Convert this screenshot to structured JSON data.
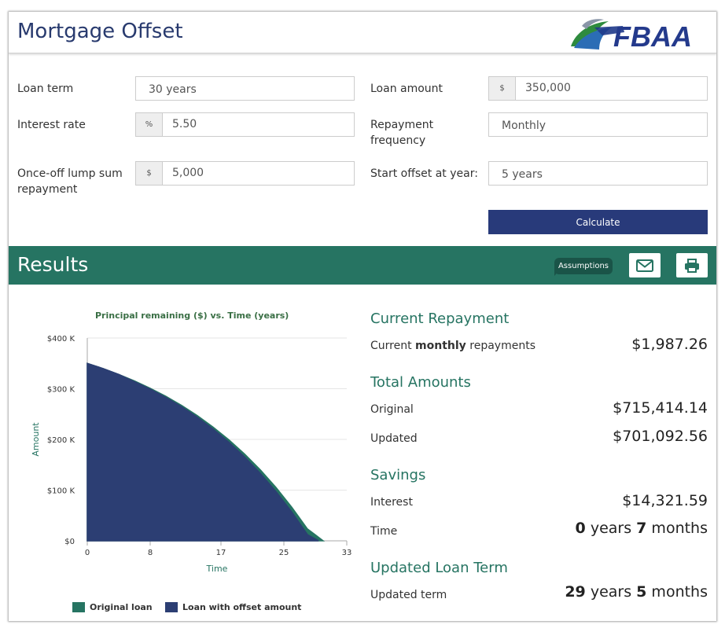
{
  "header": {
    "title": "Mortgage Offset",
    "logo_text": "FBAA"
  },
  "form": {
    "loan_term": {
      "label": "Loan term",
      "value": "30 years"
    },
    "interest_rate": {
      "label": "Interest rate",
      "addon": "%",
      "value": "5.50"
    },
    "lump_sum": {
      "label_line1": "Once-off lump sum",
      "label_line2": "repayment",
      "addon": "$",
      "value": "5,000"
    },
    "loan_amount": {
      "label": "Loan amount",
      "addon": "$",
      "value": "350,000"
    },
    "repayment_frequency": {
      "label_line1": "Repayment",
      "label_line2": "frequency",
      "value": "Monthly"
    },
    "start_offset": {
      "label": "Start offset at year:",
      "value": "5 years"
    },
    "calculate_label": "Calculate"
  },
  "results": {
    "title": "Results",
    "assumptions_label": "Assumptions",
    "email_icon": "envelope-icon",
    "print_icon": "printer-icon",
    "current_repayment": {
      "title": "Current Repayment",
      "label_pre": "Current ",
      "label_bold": "monthly",
      "label_post": " repayments",
      "value": "$1,987.26"
    },
    "total_amounts": {
      "title": "Total Amounts",
      "original_label": "Original",
      "original_value": "$715,414.14",
      "updated_label": "Updated",
      "updated_value": "$701,092.56"
    },
    "savings": {
      "title": "Savings",
      "interest_label": "Interest",
      "interest_value": "$14,321.59",
      "time_label": "Time",
      "time_years": "0",
      "time_years_unit": " years ",
      "time_months": "7",
      "time_months_unit": " months"
    },
    "updated_term": {
      "title": "Updated Loan Term",
      "label": "Updated term",
      "years": "29",
      "years_unit": " years ",
      "months": "5",
      "months_unit": " months"
    }
  },
  "chart_data": {
    "type": "area",
    "title": "Principal remaining ($) vs. Time (years)",
    "xlabel": "Time",
    "ylabel": "Amount",
    "x_ticks": [
      0,
      8,
      17,
      25,
      33
    ],
    "y_ticks": [
      0,
      100000,
      200000,
      300000,
      400000
    ],
    "y_tick_labels": [
      "$0",
      "$100 K",
      "$200 K",
      "$300 K",
      "$400 K"
    ],
    "xlim": [
      0,
      33
    ],
    "ylim": [
      0,
      400000
    ],
    "grid": true,
    "legend_position": "bottom",
    "colors": {
      "original": "#267462",
      "offset": "#2c3e73"
    },
    "series": [
      {
        "name": "Original loan",
        "x": [
          0,
          2,
          4,
          6,
          8,
          10,
          12,
          14,
          16,
          18,
          20,
          22,
          24,
          26,
          28,
          29,
          30
        ],
        "y": [
          350000,
          339800,
          328200,
          315400,
          301000,
          285000,
          267000,
          246800,
          224400,
          199200,
          171200,
          140000,
          105200,
          66400,
          23400,
          11800,
          0
        ]
      },
      {
        "name": "Loan with offset amount",
        "x": [
          0,
          2,
          4,
          6,
          8,
          10,
          12,
          14,
          16,
          18,
          20,
          22,
          24,
          26,
          28,
          29,
          29.42
        ],
        "y": [
          350000,
          339800,
          328200,
          314000,
          299300,
          282800,
          264300,
          243500,
          220300,
          194400,
          165500,
          133200,
          97200,
          57000,
          12300,
          3600,
          0
        ]
      }
    ]
  }
}
